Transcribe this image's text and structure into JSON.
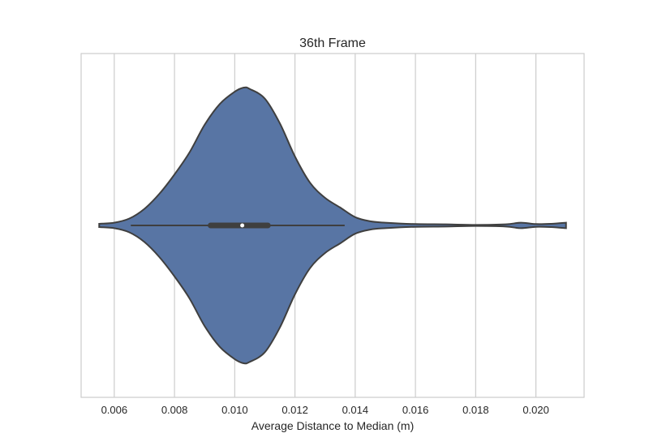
{
  "chart_data": {
    "type": "violin",
    "title": "36th Frame",
    "xlabel": "Average Distance to Median (m)",
    "ylabel": "",
    "xlim": [
      0.0049,
      0.0216
    ],
    "xticks": [
      0.006,
      0.008,
      0.01,
      0.012,
      0.014,
      0.016,
      0.018,
      0.02
    ],
    "xtick_labels": [
      "0.006",
      "0.008",
      "0.010",
      "0.012",
      "0.014",
      "0.016",
      "0.018",
      "0.020"
    ],
    "grid": true,
    "orientation": "horizontal",
    "color": "#5875a4",
    "edge_color": "#3f3f3f",
    "box": {
      "whisker_low": 0.00655,
      "q1": 0.0092,
      "median": 0.01025,
      "q3": 0.0111,
      "whisker_high": 0.01365
    },
    "density_profile": {
      "x": [
        0.0055,
        0.006,
        0.0065,
        0.007,
        0.0075,
        0.008,
        0.0085,
        0.009,
        0.0095,
        0.01,
        0.0103,
        0.0105,
        0.011,
        0.0115,
        0.012,
        0.0125,
        0.013,
        0.0135,
        0.014,
        0.0145,
        0.015,
        0.016,
        0.017,
        0.018,
        0.019,
        0.0195,
        0.02,
        0.0205,
        0.021
      ],
      "width": [
        0.012,
        0.02,
        0.05,
        0.12,
        0.23,
        0.37,
        0.53,
        0.73,
        0.88,
        0.97,
        1.0,
        0.99,
        0.92,
        0.74,
        0.5,
        0.31,
        0.2,
        0.13,
        0.06,
        0.03,
        0.02,
        0.01,
        0.008,
        0.004,
        0.008,
        0.02,
        0.01,
        0.012,
        0.02
      ]
    }
  }
}
